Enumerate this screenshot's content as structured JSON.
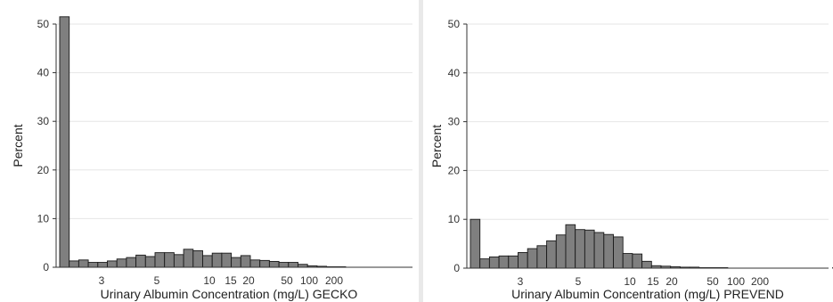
{
  "chart_data": [
    {
      "type": "bar",
      "xlabel": "Urinary Albumin Concentration (mg/L) GECKO",
      "ylabel": "Percent",
      "ylim": [
        0,
        50
      ],
      "y_ticks": [
        0,
        10,
        20,
        30,
        40,
        50
      ],
      "x_scale": "log",
      "x_ticks": [
        "3",
        "5",
        "10",
        "15",
        "20",
        "50",
        "100",
        "200"
      ],
      "grid": true,
      "values": [
        51.5,
        1.3,
        1.5,
        1.0,
        1.0,
        1.3,
        1.7,
        2.0,
        2.5,
        2.2,
        3.0,
        3.0,
        2.6,
        3.7,
        3.4,
        2.4,
        2.9,
        2.9,
        2.0,
        2.4,
        1.5,
        1.4,
        1.2,
        1.0,
        1.0,
        0.6,
        0.3,
        0.2,
        0.1,
        0.1,
        0,
        0,
        0,
        0,
        0,
        0,
        0,
        0,
        0,
        0
      ]
    },
    {
      "type": "bar",
      "xlabel": "Urinary Albumin Concentration (mg/L) PREVEND",
      "ylabel": "Percent",
      "ylim": [
        0,
        50
      ],
      "y_ticks": [
        0,
        10,
        20,
        30,
        40,
        50
      ],
      "x_scale": "log",
      "x_ticks": [
        "3",
        "5",
        "10",
        "15",
        "20",
        "50",
        "100",
        "200"
      ],
      "grid": true,
      "values": [
        10.0,
        1.9,
        2.3,
        2.5,
        2.5,
        3.2,
        4.0,
        4.6,
        5.6,
        6.8,
        8.9,
        7.9,
        7.8,
        7.3,
        6.9,
        6.4,
        3.0,
        2.9,
        1.4,
        0.5,
        0.4,
        0.3,
        0.2,
        0.2,
        0.1,
        0.1,
        0.1,
        0,
        0,
        0,
        0,
        0,
        0,
        0,
        0,
        0,
        0,
        0,
        0.1,
        0
      ]
    }
  ]
}
